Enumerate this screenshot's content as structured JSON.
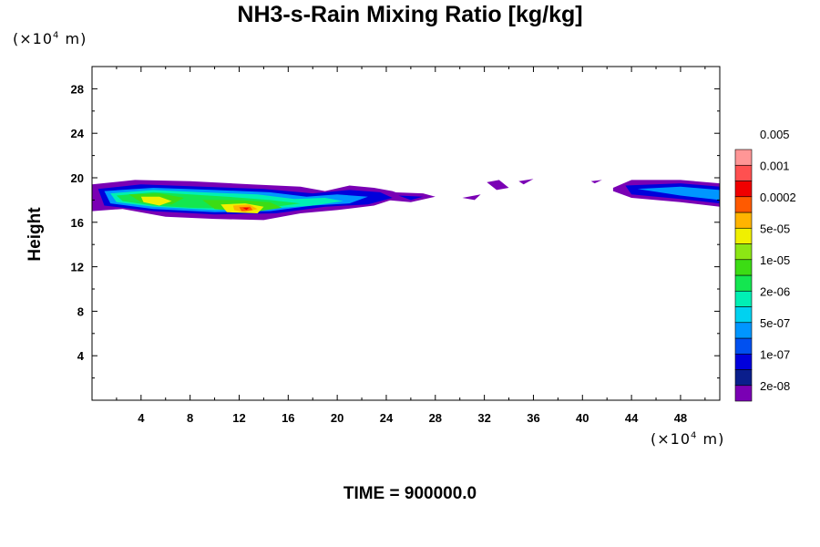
{
  "chart_data": {
    "type": "contour",
    "title": "NH3-s-Rain Mixing Ratio [kg/kg]",
    "xlabel": "",
    "ylabel": "Height",
    "x_unit": {
      "prefix": "(×10",
      "exp": "4",
      "suffix": " m)"
    },
    "y_unit": {
      "prefix": "(×10",
      "exp": "4",
      "suffix": " m)"
    },
    "xlim": [
      0,
      51.2
    ],
    "ylim": [
      0,
      30
    ],
    "xticks": [
      4,
      8,
      12,
      16,
      20,
      24,
      28,
      32,
      36,
      40,
      44,
      48
    ],
    "yticks": [
      4,
      8,
      12,
      16,
      20,
      24,
      28
    ],
    "colorbar": {
      "colors": [
        "#7a00b4",
        "#0a1e8c",
        "#0000dc",
        "#0050f0",
        "#0096ff",
        "#00d2f0",
        "#00f0b4",
        "#14e650",
        "#3cdc14",
        "#8ce614",
        "#f0f000",
        "#ffb400",
        "#ff5a00",
        "#f00000",
        "#ff5050",
        "#ff9696"
      ],
      "labels": [
        "2e-08",
        "1e-07",
        "5e-07",
        "2e-06",
        "1e-05",
        "5e-05",
        "0.0002",
        "0.001",
        "0.005"
      ]
    },
    "field": {
      "layers": [
        {
          "level": 0,
          "regions": [
            {
              "x": [
                0,
                3.5,
                8,
                13,
                17,
                19,
                21,
                23,
                24.5,
                25.5,
                23,
                20,
                17,
                14,
                10,
                6,
                2.5,
                0
              ],
              "y": [
                19.4,
                19.8,
                19.7,
                19.4,
                19.2,
                18.8,
                19.3,
                19.1,
                18.8,
                18.4,
                17.5,
                17.1,
                16.8,
                16.2,
                16.3,
                16.5,
                17.2,
                17.0
              ]
            },
            {
              "x": [
                24.5,
                27,
                28,
                26,
                24
              ],
              "y": [
                18.7,
                18.6,
                18.3,
                17.8,
                18.0
              ]
            },
            {
              "x": [
                30.2,
                31.7,
                31.2
              ],
              "y": [
                18.2,
                18.5,
                18.0
              ]
            },
            {
              "x": [
                32.2,
                33.2,
                34.0,
                33.0
              ],
              "y": [
                19.6,
                19.8,
                19.1,
                18.9
              ]
            },
            {
              "x": [
                34.8,
                36,
                35.2
              ],
              "y": [
                19.7,
                19.9,
                19.4
              ]
            },
            {
              "x": [
                40.7,
                41.6,
                41.0
              ],
              "y": [
                19.7,
                19.8,
                19.5
              ]
            },
            {
              "x": [
                42.5,
                44,
                48,
                51.2,
                51.2,
                48,
                44,
                42.5
              ],
              "y": [
                19.1,
                19.8,
                19.8,
                19.5,
                17.4,
                17.8,
                18.2,
                18.8
              ]
            }
          ]
        },
        {
          "level": 2,
          "regions": [
            {
              "x": [
                0.5,
                4,
                9,
                14,
                18,
                21,
                23.5,
                24.5,
                22.5,
                19,
                15,
                10,
                5,
                1
              ],
              "y": [
                19.0,
                19.4,
                19.2,
                19.0,
                18.6,
                18.9,
                18.7,
                18.2,
                17.6,
                17.4,
                16.8,
                16.7,
                17.0,
                17.5
              ]
            },
            {
              "x": [
                25,
                27,
                26
              ],
              "y": [
                18.4,
                18.3,
                18.0
              ]
            },
            {
              "x": [
                43.5,
                48,
                51.2,
                51.2,
                48,
                44
              ],
              "y": [
                19.3,
                19.5,
                19.2,
                17.7,
                18.1,
                18.5
              ]
            }
          ]
        },
        {
          "level": 4,
          "regions": [
            {
              "x": [
                1,
                5,
                10,
                14.5,
                17.5,
                20,
                22.5,
                21,
                18,
                14.5,
                10,
                5,
                1.5
              ],
              "y": [
                18.8,
                19.1,
                18.9,
                18.7,
                18.3,
                18.5,
                18.3,
                17.7,
                17.5,
                17.0,
                16.9,
                17.2,
                17.7
              ]
            },
            {
              "x": [
                44.5,
                48,
                51.2,
                51.2,
                48
              ],
              "y": [
                19.0,
                19.2,
                18.9,
                18.0,
                18.4
              ]
            }
          ]
        },
        {
          "level": 6,
          "regions": [
            {
              "x": [
                1.5,
                5,
                9,
                13.5,
                16.5,
                19,
                20.5,
                18,
                14,
                10,
                5,
                2
              ],
              "y": [
                18.6,
                18.9,
                18.7,
                18.5,
                18.1,
                18.2,
                17.9,
                17.5,
                17.2,
                17.1,
                17.4,
                17.8
              ]
            }
          ]
        },
        {
          "level": 7,
          "regions": [
            {
              "x": [
                2,
                5,
                8,
                11,
                14.5,
                17,
                15,
                12,
                8,
                5,
                2.5
              ],
              "y": [
                18.4,
                18.7,
                18.5,
                18.3,
                18.0,
                17.7,
                17.4,
                17.2,
                17.3,
                17.5,
                17.9
              ]
            }
          ]
        },
        {
          "level": 8,
          "regions": [
            {
              "x": [
                3,
                5.5,
                7.5,
                6.5,
                4
              ],
              "y": [
                18.5,
                18.6,
                18.2,
                17.6,
                17.8
              ]
            },
            {
              "x": [
                9,
                12,
                14.5,
                15.5,
                13,
                10
              ],
              "y": [
                18.0,
                18.0,
                17.8,
                17.3,
                16.9,
                17.2
              ]
            }
          ]
        },
        {
          "level": 10,
          "regions": [
            {
              "x": [
                4,
                5.5,
                6.5,
                5.5,
                4.2
              ],
              "y": [
                18.3,
                18.3,
                17.9,
                17.5,
                17.8
              ]
            },
            {
              "x": [
                10.5,
                12.5,
                14,
                13.5,
                11
              ],
              "y": [
                17.6,
                17.7,
                17.4,
                16.8,
                16.9
              ]
            }
          ]
        },
        {
          "level": 11,
          "regions": [
            {
              "x": [
                11.5,
                12.8,
                13.5,
                12.5,
                11.6
              ],
              "y": [
                17.5,
                17.6,
                17.2,
                16.9,
                17.1
              ]
            }
          ]
        },
        {
          "level": 12,
          "regions": [
            {
              "x": [
                12,
                12.9,
                13.1,
                12.2
              ],
              "y": [
                17.35,
                17.4,
                17.1,
                17.0
              ]
            }
          ]
        },
        {
          "level": 13,
          "regions": [
            {
              "x": [
                12.3,
                12.8,
                12.6
              ],
              "y": [
                17.3,
                17.3,
                17.1
              ]
            }
          ]
        }
      ]
    }
  },
  "footer": {
    "time_text": "TIME = 900000.0"
  }
}
